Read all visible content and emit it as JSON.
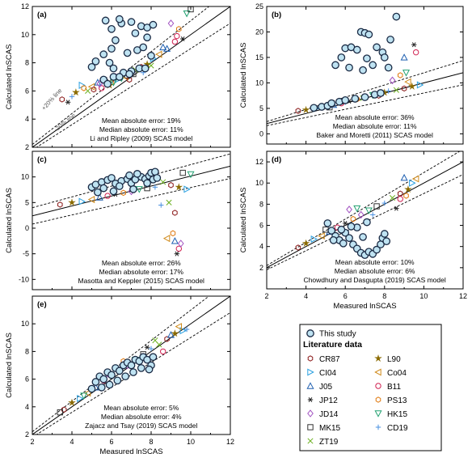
{
  "common": {
    "xlabel": "Measured lnSCAS",
    "ylabel": "Calculated lnSCAS"
  },
  "chart_data": [
    {
      "type": "scatter",
      "panel_label": "(a)",
      "xlim": [
        2,
        12
      ],
      "ylim": [
        2,
        12
      ],
      "xticks": [
        "2",
        "4",
        "6",
        "8",
        "10",
        "12"
      ],
      "yticks": [
        "2",
        "4",
        "6",
        "8",
        "10",
        "12"
      ],
      "show_xticklabels": false,
      "show_xlabel": false,
      "lines": {
        "one_to_one": true,
        "error_band_log": 0.18
      },
      "line_labels": [
        "+20% line",
        "-20% line"
      ],
      "annotation": [
        "Mean absolute error: 19%",
        "Median absolute error: 11%",
        "Li and Ripley (2009) SCAS model"
      ],
      "this_study": [
        [
          5.0,
          7.7
        ],
        [
          5.2,
          8.1
        ],
        [
          5.6,
          8.6
        ],
        [
          6.0,
          9.0
        ],
        [
          6.2,
          9.6
        ],
        [
          6.0,
          10.4
        ],
        [
          6.5,
          10.8
        ],
        [
          7.0,
          10.9
        ],
        [
          7.5,
          10.6
        ],
        [
          7.8,
          10.5
        ],
        [
          8.1,
          10.7
        ],
        [
          7.8,
          9.8
        ],
        [
          8.0,
          8.5
        ],
        [
          6.1,
          7.6
        ],
        [
          5.9,
          8.0
        ],
        [
          6.8,
          8.7
        ],
        [
          7.3,
          8.9
        ],
        [
          7.6,
          9.1
        ],
        [
          5.7,
          11.0
        ],
        [
          6.4,
          11.1
        ],
        [
          7.2,
          10.1
        ],
        [
          5.6,
          6.8
        ],
        [
          6.1,
          7.0
        ],
        [
          6.6,
          7.3
        ],
        [
          7.0,
          7.4
        ],
        [
          7.4,
          7.6
        ],
        [
          5.8,
          6.5
        ],
        [
          6.4,
          7.0
        ],
        [
          7.7,
          7.6
        ],
        [
          6.9,
          7.2
        ]
      ],
      "literature_points": [
        [
          3.5,
          5.4
        ],
        [
          4.2,
          5.9
        ],
        [
          4.5,
          6.4
        ],
        [
          5.0,
          6.3
        ],
        [
          5.3,
          6.6
        ],
        [
          5.5,
          6.2
        ],
        [
          5.7,
          6.8
        ],
        [
          6.0,
          6.6
        ],
        [
          6.2,
          7.0
        ],
        [
          6.5,
          6.9
        ],
        [
          6.8,
          7.1
        ],
        [
          7.0,
          7.3
        ],
        [
          7.2,
          7.5
        ],
        [
          7.5,
          7.7
        ],
        [
          7.8,
          7.9
        ],
        [
          8.1,
          8.3
        ],
        [
          8.4,
          8.6
        ],
        [
          8.8,
          9.0
        ],
        [
          9.2,
          9.5
        ],
        [
          9.6,
          9.7
        ],
        [
          9.4,
          10.4
        ],
        [
          9.0,
          10.8
        ],
        [
          9.8,
          11.5
        ],
        [
          10.0,
          11.8
        ],
        [
          4.0,
          5.6
        ],
        [
          4.8,
          6.0
        ],
        [
          5.1,
          6.1
        ],
        [
          5.9,
          6.4
        ],
        [
          6.3,
          6.8
        ],
        [
          6.7,
          7.0
        ],
        [
          8.6,
          9.1
        ],
        [
          9.3,
          9.9
        ],
        [
          3.8,
          5.2
        ],
        [
          4.6,
          6.2
        ],
        [
          5.4,
          6.5
        ],
        [
          6.1,
          6.6
        ],
        [
          7.1,
          7.2
        ],
        [
          7.6,
          7.3
        ],
        [
          8.0,
          7.8
        ],
        [
          6.9,
          6.8
        ]
      ],
      "data_names": {
        "this_study": "this-study-point",
        "literature": "literature-point"
      }
    },
    {
      "type": "scatter",
      "panel_label": "(b)",
      "xlim": [
        2,
        12
      ],
      "ylim": [
        -2,
        25
      ],
      "xticks": [
        "2",
        "4",
        "6",
        "8",
        "10",
        "12"
      ],
      "yticks": [
        "0",
        "5",
        "10",
        "15",
        "20",
        "25"
      ],
      "show_xticklabels": false,
      "show_xlabel": false,
      "lines": {
        "one_to_one": true,
        "error_band_log": 0.36
      },
      "annotation": [
        "Mean absolute error: 36%",
        "Median absolute error: 11%",
        "Baker and Moretti (2011) SCAS model"
      ],
      "this_study": [
        [
          4.4,
          5.1
        ],
        [
          4.8,
          5.3
        ],
        [
          5.1,
          5.5
        ],
        [
          5.3,
          6.0
        ],
        [
          5.7,
          6.3
        ],
        [
          6.0,
          6.6
        ],
        [
          6.5,
          6.9
        ],
        [
          7.0,
          7.2
        ],
        [
          7.5,
          7.7
        ],
        [
          7.8,
          8.0
        ],
        [
          5.5,
          13.5
        ],
        [
          5.8,
          15.0
        ],
        [
          6.0,
          16.8
        ],
        [
          6.3,
          17.0
        ],
        [
          6.6,
          16.5
        ],
        [
          6.8,
          20.0
        ],
        [
          7.0,
          19.8
        ],
        [
          7.2,
          19.5
        ],
        [
          7.6,
          17.0
        ],
        [
          7.9,
          16.0
        ],
        [
          8.0,
          15.0
        ],
        [
          7.4,
          13.5
        ],
        [
          6.9,
          12.5
        ],
        [
          8.2,
          13.0
        ],
        [
          8.3,
          18.5
        ],
        [
          8.6,
          23.0
        ],
        [
          7.1,
          14.8
        ],
        [
          6.2,
          13.0
        ]
      ],
      "literature_points": [
        [
          3.6,
          4.5
        ],
        [
          4.0,
          4.7
        ],
        [
          4.5,
          5.0
        ],
        [
          5.0,
          5.4
        ],
        [
          5.4,
          5.7
        ],
        [
          5.8,
          6.0
        ],
        [
          6.2,
          6.4
        ],
        [
          6.6,
          6.8
        ],
        [
          7.0,
          7.2
        ],
        [
          7.4,
          7.6
        ],
        [
          7.8,
          8.0
        ],
        [
          8.2,
          8.4
        ],
        [
          8.6,
          8.6
        ],
        [
          9.0,
          8.9
        ],
        [
          9.4,
          9.3
        ],
        [
          9.8,
          9.6
        ],
        [
          9.2,
          10.2
        ],
        [
          9.0,
          15.0
        ],
        [
          9.6,
          16.0
        ],
        [
          9.5,
          17.5
        ],
        [
          8.8,
          11.5
        ],
        [
          8.4,
          10.5
        ],
        [
          9.1,
          12.0
        ],
        [
          5.2,
          5.2
        ],
        [
          6.0,
          6.2
        ],
        [
          6.9,
          7.0
        ],
        [
          7.7,
          7.5
        ],
        [
          8.0,
          8.1
        ]
      ],
      "data_names": {
        "this_study": "this-study-point",
        "literature": "literature-point"
      }
    },
    {
      "type": "scatter",
      "panel_label": "(c)",
      "xlim": [
        2,
        12
      ],
      "ylim": [
        -12,
        15
      ],
      "xticks": [
        "2",
        "4",
        "6",
        "8",
        "10",
        "12"
      ],
      "yticks": [
        "-10",
        "-5",
        "0",
        "5",
        "10"
      ],
      "show_xticklabels": false,
      "show_xlabel": false,
      "lines": {
        "one_to_one": false,
        "regression": [
          2,
          2.4,
          12,
          12.1
        ],
        "error_band_abs": 1.6
      },
      "annotation": [
        "Mean absolute error: 26%",
        "Median absolute error: 17%",
        "Masotta and Keppler (2015) SCAS model"
      ],
      "this_study": [
        [
          5.0,
          8.0
        ],
        [
          5.2,
          8.5
        ],
        [
          5.5,
          9.0
        ],
        [
          5.8,
          9.4
        ],
        [
          6.0,
          9.8
        ],
        [
          6.2,
          8.7
        ],
        [
          6.5,
          9.2
        ],
        [
          6.8,
          9.6
        ],
        [
          7.0,
          8.8
        ],
        [
          7.2,
          9.5
        ],
        [
          7.5,
          10.0
        ],
        [
          7.7,
          9.6
        ],
        [
          7.9,
          10.2
        ],
        [
          8.0,
          10.8
        ],
        [
          8.2,
          11.0
        ],
        [
          8.1,
          9.5
        ],
        [
          7.8,
          8.8
        ],
        [
          6.4,
          8.2
        ],
        [
          5.6,
          7.8
        ],
        [
          6.9,
          10.3
        ],
        [
          7.3,
          10.6
        ],
        [
          5.3,
          7.0
        ],
        [
          6.1,
          7.2
        ],
        [
          7.1,
          7.6
        ],
        [
          8.3,
          9.8
        ]
      ],
      "literature_points": [
        [
          3.4,
          4.6
        ],
        [
          4.0,
          5.0
        ],
        [
          4.5,
          5.2
        ],
        [
          5.0,
          5.6
        ],
        [
          5.4,
          6.0
        ],
        [
          5.8,
          6.3
        ],
        [
          6.2,
          6.6
        ],
        [
          6.6,
          6.9
        ],
        [
          7.0,
          7.2
        ],
        [
          7.4,
          7.6
        ],
        [
          7.8,
          7.8
        ],
        [
          8.2,
          8.0
        ],
        [
          8.6,
          9.0
        ],
        [
          9.0,
          8.4
        ],
        [
          9.4,
          8.0
        ],
        [
          9.8,
          7.6
        ],
        [
          8.8,
          -2.0
        ],
        [
          9.2,
          -2.5
        ],
        [
          9.4,
          -4.0
        ],
        [
          9.3,
          -5.0
        ],
        [
          9.1,
          -1.0
        ],
        [
          9.5,
          -3.0
        ],
        [
          10.0,
          10.5
        ],
        [
          9.6,
          10.8
        ],
        [
          8.5,
          4.5
        ],
        [
          8.9,
          5.0
        ],
        [
          9.2,
          3.0
        ]
      ],
      "data_names": {
        "this_study": "this-study-point",
        "literature": "literature-point"
      }
    },
    {
      "type": "scatter",
      "panel_label": "(d)",
      "xlim": [
        2,
        12
      ],
      "ylim": [
        0,
        13
      ],
      "xticks": [
        "2",
        "4",
        "6",
        "8",
        "10",
        "12"
      ],
      "yticks": [
        "2",
        "4",
        "6",
        "8",
        "10",
        "12"
      ],
      "show_xticklabels": true,
      "show_xlabel": true,
      "lines": {
        "one_to_one": true,
        "error_band_log": 0.18
      },
      "annotation": [
        "Mean absolute error: 10%",
        "Median absolute error: 6%",
        "Chowdhury and Dasgupta (2019) SCAS model"
      ],
      "this_study": [
        [
          5.1,
          6.2
        ],
        [
          5.3,
          5.5
        ],
        [
          5.5,
          5.0
        ],
        [
          5.7,
          4.6
        ],
        [
          5.9,
          4.3
        ],
        [
          6.0,
          5.3
        ],
        [
          6.2,
          4.8
        ],
        [
          6.4,
          4.2
        ],
        [
          6.6,
          3.8
        ],
        [
          6.8,
          3.4
        ],
        [
          7.0,
          3.2
        ],
        [
          7.2,
          3.5
        ],
        [
          7.4,
          3.3
        ],
        [
          7.6,
          3.7
        ],
        [
          7.8,
          4.2
        ],
        [
          7.9,
          4.8
        ],
        [
          8.0,
          5.2
        ],
        [
          6.6,
          5.8
        ],
        [
          7.1,
          6.3
        ],
        [
          5.8,
          5.6
        ],
        [
          6.3,
          5.9
        ],
        [
          8.1,
          4.5
        ],
        [
          5.4,
          4.6
        ],
        [
          6.9,
          4.9
        ]
      ],
      "literature_points": [
        [
          3.6,
          3.9
        ],
        [
          4.0,
          4.3
        ],
        [
          4.4,
          4.7
        ],
        [
          4.8,
          5.0
        ],
        [
          5.2,
          5.4
        ],
        [
          5.6,
          5.8
        ],
        [
          6.0,
          6.2
        ],
        [
          6.4,
          6.6
        ],
        [
          6.8,
          7.0
        ],
        [
          7.2,
          7.4
        ],
        [
          7.6,
          7.8
        ],
        [
          8.0,
          8.1
        ],
        [
          8.4,
          8.6
        ],
        [
          8.8,
          9.0
        ],
        [
          9.2,
          9.4
        ],
        [
          9.4,
          10.0
        ],
        [
          9.6,
          10.4
        ],
        [
          9.0,
          10.5
        ],
        [
          8.8,
          8.5
        ],
        [
          8.6,
          7.6
        ],
        [
          9.1,
          8.8
        ],
        [
          6.2,
          7.5
        ],
        [
          6.6,
          7.6
        ],
        [
          5.0,
          5.6
        ],
        [
          7.4,
          7.0
        ]
      ],
      "data_names": {
        "this_study": "this-study-point",
        "literature": "literature-point"
      }
    },
    {
      "type": "scatter",
      "panel_label": "(e)",
      "xlim": [
        2,
        12
      ],
      "ylim": [
        2,
        12
      ],
      "xticks": [
        "2",
        "4",
        "6",
        "8",
        "10",
        "12"
      ],
      "yticks": [
        "2",
        "4",
        "6",
        "8",
        "10"
      ],
      "show_xticklabels": true,
      "show_xlabel": true,
      "lines": {
        "one_to_one": true,
        "error_band_log": 0.18
      },
      "annotation": [
        "Mean absolute error: 5%",
        "Median absolute error: 4%",
        "Zajacz and Tsay (2019) SCAS model"
      ],
      "this_study": [
        [
          5.0,
          5.3
        ],
        [
          5.2,
          5.8
        ],
        [
          5.4,
          6.2
        ],
        [
          5.6,
          6.0
        ],
        [
          5.8,
          6.5
        ],
        [
          6.0,
          6.3
        ],
        [
          6.2,
          6.8
        ],
        [
          6.4,
          6.6
        ],
        [
          6.6,
          7.0
        ],
        [
          6.8,
          7.2
        ],
        [
          7.0,
          7.0
        ],
        [
          7.2,
          7.4
        ],
        [
          7.4,
          7.3
        ],
        [
          7.6,
          7.6
        ],
        [
          7.8,
          7.4
        ],
        [
          8.0,
          7.0
        ],
        [
          8.1,
          7.6
        ],
        [
          5.9,
          5.6
        ],
        [
          6.3,
          5.9
        ],
        [
          6.7,
          6.2
        ],
        [
          7.1,
          6.5
        ],
        [
          7.5,
          6.8
        ],
        [
          7.9,
          6.7
        ],
        [
          5.5,
          5.4
        ]
      ],
      "literature_points": [
        [
          3.6,
          3.8
        ],
        [
          4.0,
          4.3
        ],
        [
          4.4,
          4.6
        ],
        [
          4.8,
          5.0
        ],
        [
          5.2,
          5.4
        ],
        [
          5.6,
          5.9
        ],
        [
          6.0,
          6.2
        ],
        [
          6.4,
          6.6
        ],
        [
          6.8,
          7.0
        ],
        [
          7.2,
          7.4
        ],
        [
          7.6,
          7.8
        ],
        [
          8.0,
          8.2
        ],
        [
          8.4,
          8.5
        ],
        [
          8.8,
          8.9
        ],
        [
          9.2,
          9.3
        ],
        [
          9.6,
          9.5
        ],
        [
          9.4,
          9.8
        ],
        [
          9.0,
          9.2
        ],
        [
          8.6,
          8.0
        ],
        [
          7.8,
          8.3
        ],
        [
          6.6,
          7.3
        ],
        [
          5.8,
          6.4
        ],
        [
          4.6,
          4.8
        ],
        [
          3.4,
          3.6
        ],
        [
          9.8,
          9.6
        ],
        [
          8.2,
          8.8
        ]
      ],
      "data_names": {
        "this_study": "this-study-point",
        "literature": "literature-point"
      }
    }
  ],
  "legend": {
    "this_study_label": "This study",
    "literature_title": "Literature data",
    "items": [
      {
        "label": "CR87",
        "symbol": "hexagon",
        "color": "#8B1A1A"
      },
      {
        "label": "L90",
        "symbol": "star",
        "color": "#8B6B00"
      },
      {
        "label": "CI04",
        "symbol": "tri-right",
        "color": "#2AA0E0"
      },
      {
        "label": "Co04",
        "symbol": "tri-left",
        "color": "#D08A1A"
      },
      {
        "label": "J05",
        "symbol": "tri-up",
        "color": "#1E5FB0"
      },
      {
        "label": "B11",
        "symbol": "circle",
        "color": "#D02050"
      },
      {
        "label": "JP12",
        "symbol": "asterisk",
        "color": "#222222"
      },
      {
        "label": "PS13",
        "symbol": "hexagon",
        "color": "#E07A10"
      },
      {
        "label": "JD14",
        "symbol": "diamond",
        "color": "#A050C0"
      },
      {
        "label": "HK15",
        "symbol": "tri-down",
        "color": "#20A070"
      },
      {
        "label": "MK15",
        "symbol": "square",
        "color": "#333333"
      },
      {
        "label": "CD19",
        "symbol": "plus",
        "color": "#4A90E0"
      },
      {
        "label": "ZT19",
        "symbol": "x",
        "color": "#6CB020"
      }
    ]
  },
  "colors": {
    "this_study_fill": "#BFE3F2",
    "this_study_stroke": "#1A2A44",
    "axis": "#000000"
  }
}
